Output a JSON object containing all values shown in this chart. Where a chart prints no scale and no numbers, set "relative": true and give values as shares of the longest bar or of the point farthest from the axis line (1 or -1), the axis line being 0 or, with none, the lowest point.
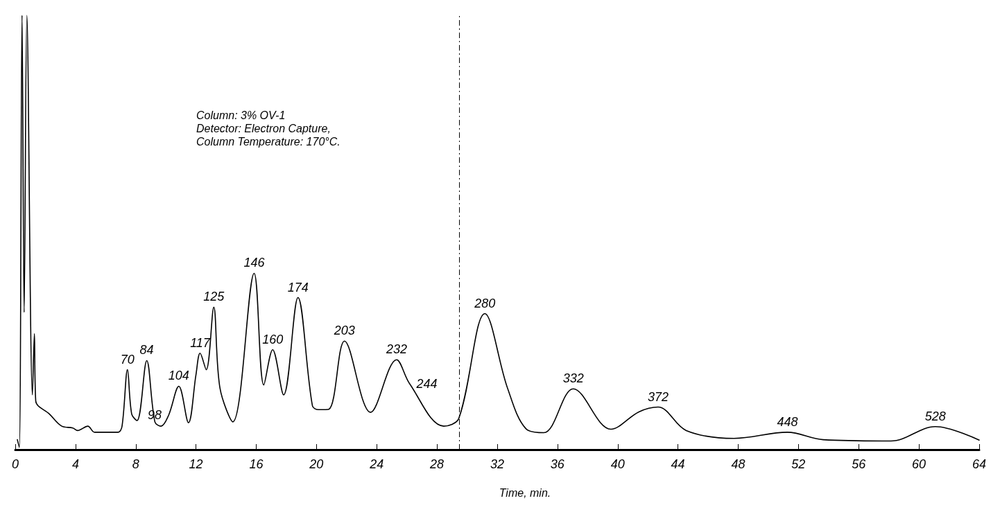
{
  "chart_data": {
    "type": "line",
    "relative": true,
    "xlabel": "Time, min.",
    "xlim": [
      0,
      64
    ],
    "xticks": [
      0,
      4,
      8,
      12,
      16,
      20,
      24,
      28,
      32,
      36,
      40,
      44,
      48,
      52,
      56,
      60,
      64
    ],
    "grid": false,
    "marker": "none",
    "line_style": "solid",
    "series": [
      {
        "color": "#000000",
        "x": [
          0.14,
          0.27,
          0.45,
          0.59,
          0.77,
          1.14,
          1.27,
          1.36,
          2.27,
          3.09,
          3.82,
          4.14,
          4.82,
          5.27,
          6.82,
          7.09,
          7.45,
          7.73,
          8.09,
          8.73,
          9.27,
          9.68,
          10.18,
          10.86,
          11.5,
          12.0,
          12.27,
          12.68,
          13.18,
          13.59,
          14.45,
          15.86,
          16.5,
          17.09,
          17.82,
          18.77,
          19.73,
          20.14,
          20.82,
          21.86,
          23.59,
          25.32,
          26.18,
          28.45,
          29.45,
          31.18,
          32.68,
          33.91,
          35.09,
          37.05,
          39.55,
          41.41,
          42.68,
          44.55,
          47.73,
          51.27,
          53.64,
          58.14,
          61.09,
          64
        ],
        "values": [
          0.023,
          0.005,
          1.0,
          0.316,
          1.0,
          0.126,
          0.267,
          0.112,
          0.082,
          0.054,
          0.05,
          0.044,
          0.054,
          0.04,
          0.04,
          0.054,
          0.184,
          0.082,
          0.067,
          0.205,
          0.064,
          0.054,
          0.079,
          0.146,
          0.062,
          0.173,
          0.222,
          0.184,
          0.328,
          0.142,
          0.064,
          0.406,
          0.149,
          0.23,
          0.126,
          0.35,
          0.101,
          0.092,
          0.093,
          0.25,
          0.086,
          0.207,
          0.152,
          0.054,
          0.072,
          0.313,
          0.142,
          0.048,
          0.039,
          0.14,
          0.047,
          0.087,
          0.098,
          0.044,
          0.026,
          0.04,
          0.023,
          0.02,
          0.053,
          0.022
        ]
      }
    ],
    "ref_lines": [
      {
        "axis": "x",
        "value": 29.5,
        "line_style": "dashed",
        "color": "#000000"
      }
    ],
    "annotations": [
      "Column: 3% OV-1",
      "Detector: Electron Capture,",
      "Column Temperature: 170°C.",
      {
        "text": "70",
        "x": 7.45,
        "y": 0.184
      },
      {
        "text": "84",
        "x": 8.73,
        "y": 0.205
      },
      {
        "text": "98",
        "x": 10.18,
        "y": 0.079
      },
      {
        "text": "104",
        "x": 10.86,
        "y": 0.146
      },
      {
        "text": "117",
        "x": 12.27,
        "y": 0.222
      },
      {
        "text": "125",
        "x": 13.18,
        "y": 0.328
      },
      {
        "text": "146",
        "x": 15.86,
        "y": 0.406
      },
      {
        "text": "160",
        "x": 17.09,
        "y": 0.23
      },
      {
        "text": "174",
        "x": 18.77,
        "y": 0.35
      },
      {
        "text": "203",
        "x": 21.86,
        "y": 0.25
      },
      {
        "text": "232",
        "x": 25.32,
        "y": 0.207
      },
      {
        "text": "244",
        "x": 26.18,
        "y": 0.152
      },
      {
        "text": "280",
        "x": 31.18,
        "y": 0.313
      },
      {
        "text": "332",
        "x": 37.05,
        "y": 0.14
      },
      {
        "text": "372",
        "x": 42.68,
        "y": 0.098
      },
      {
        "text": "448",
        "x": 51.27,
        "y": 0.04
      },
      {
        "text": "528",
        "x": 61.09,
        "y": 0.053
      }
    ]
  }
}
